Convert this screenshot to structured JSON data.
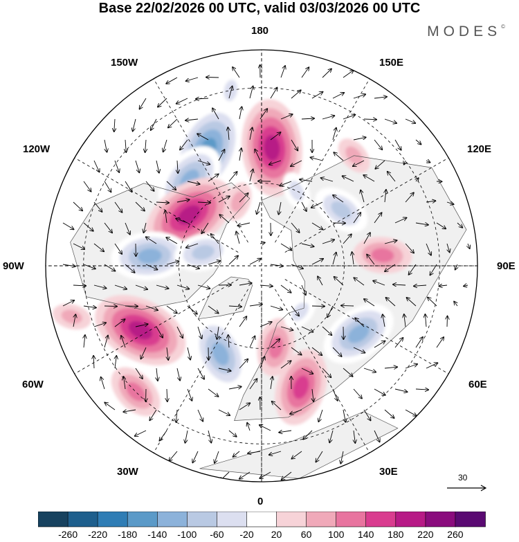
{
  "title": "Base 22/02/2026 00 UTC, valid 03/03/2026 00 UTC",
  "brand": "MODES",
  "brand_mark": "©",
  "longitude_labels": {
    "top": "180",
    "top_left": "150W",
    "top_right": "150E",
    "upper_left": "120W",
    "upper_right": "120E",
    "left": "90W",
    "right": "90E",
    "lower_left": "60W",
    "lower_right": "60E",
    "bottom_left": "30W",
    "bottom_right": "30E",
    "bottom": "0"
  },
  "reference_vector": {
    "label": "30"
  },
  "colorbar": {
    "labels": [
      "-260",
      "-220",
      "-180",
      "-140",
      "-100",
      "-60",
      "-20",
      "20",
      "60",
      "100",
      "140",
      "180",
      "220",
      "260"
    ],
    "colors": [
      "#17425f",
      "#1e5f8d",
      "#2f7db5",
      "#5b9ac8",
      "#8cb2da",
      "#b9c9e3",
      "#dcdff0",
      "#ffffff",
      "#f7d3d8",
      "#f0a9b9",
      "#e8749f",
      "#d93c8f",
      "#b71a86",
      "#8a0c7d",
      "#5a0a72"
    ]
  },
  "colors": {
    "coast": "#555555",
    "grid": "#000000",
    "land_gray": "#e4e4e4"
  },
  "chart_data": {
    "type": "map",
    "projection": "north-polar-stereographic",
    "field": "geopotential height anomaly with wind vectors",
    "anomaly_centers": [
      {
        "lon": -155,
        "lat": 45,
        "value": -180
      },
      {
        "lon": -140,
        "lat": 50,
        "value": -140
      },
      {
        "lon": 175,
        "lat": 48,
        "value": 180
      },
      {
        "lon": -125,
        "lat": 58,
        "value": 180
      },
      {
        "lon": -95,
        "lat": 50,
        "value": -140
      },
      {
        "lon": -103,
        "lat": 68,
        "value": -100
      },
      {
        "lon": -62,
        "lat": 42,
        "value": 180
      },
      {
        "lon": -25,
        "lat": 55,
        "value": -140
      },
      {
        "lon": 18,
        "lat": 45,
        "value": 140
      },
      {
        "lon": 10,
        "lat": 60,
        "value": 100
      },
      {
        "lon": 55,
        "lat": 48,
        "value": -140
      },
      {
        "lon": 95,
        "lat": 47,
        "value": 100
      },
      {
        "lon": 125,
        "lat": 55,
        "value": -100
      },
      {
        "lon": 155,
        "lat": 60,
        "value": -60
      },
      {
        "lon": 140,
        "lat": 40,
        "value": 60
      },
      {
        "lon": 40,
        "lat": 68,
        "value": -60
      },
      {
        "lon": -75,
        "lat": 25,
        "value": 60
      },
      {
        "lon": -45,
        "lat": 30,
        "value": 100
      },
      {
        "lon": -160,
        "lat": 65,
        "value": 60
      },
      {
        "lon": -170,
        "lat": 30,
        "value": -60
      }
    ]
  }
}
